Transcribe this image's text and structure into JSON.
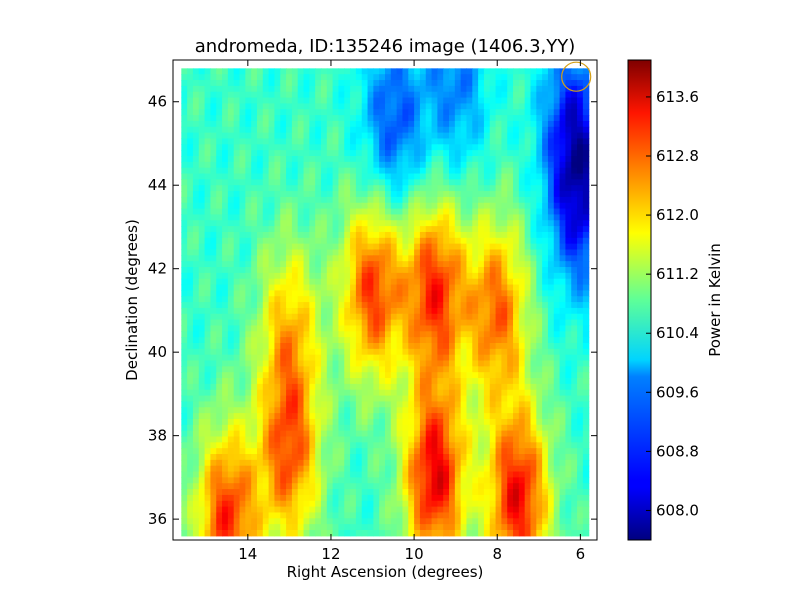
{
  "chart_data": {
    "type": "heatmap",
    "title": "andromeda, ID:135246 image (1406.3,YY)",
    "xlabel": "Right Ascension (degrees)",
    "ylabel": "Declination (degrees)",
    "colorbar_label": "Power in Kelvin",
    "colormap": "jet",
    "xlim": [
      15.8,
      5.6
    ],
    "ylim": [
      35.5,
      47.0
    ],
    "x_ticks": [
      14,
      12,
      10,
      8,
      6
    ],
    "x_tick_labels": [
      "14",
      "12",
      "10",
      "8",
      "6"
    ],
    "y_ticks": [
      36,
      38,
      40,
      42,
      44,
      46
    ],
    "y_tick_labels": [
      "36",
      "38",
      "40",
      "42",
      "44",
      "46"
    ],
    "color_range": [
      607.6,
      614.1
    ],
    "colorbar_ticks": [
      608.0,
      608.8,
      609.6,
      610.4,
      611.2,
      612.0,
      612.8,
      613.6
    ],
    "colorbar_tick_labels": [
      "608.0",
      "608.8",
      "609.6",
      "610.4",
      "611.2",
      "612.0",
      "612.8",
      "613.6"
    ],
    "data_extent": {
      "x": [
        15.6,
        5.8
      ],
      "y": [
        35.6,
        46.8
      ]
    },
    "features": [
      {
        "ra": 13.0,
        "dec": 37.5,
        "value": 612.6
      },
      {
        "ra": 13.0,
        "dec": 40.5,
        "value": 612.0
      },
      {
        "ra": 11.0,
        "dec": 41.5,
        "value": 612.9
      },
      {
        "ra": 9.5,
        "dec": 41.5,
        "value": 613.0
      },
      {
        "ra": 9.5,
        "dec": 37.0,
        "value": 613.4
      },
      {
        "ra": 8.0,
        "dec": 41.0,
        "value": 612.6
      },
      {
        "ra": 7.5,
        "dec": 36.5,
        "value": 613.3
      },
      {
        "ra": 14.5,
        "dec": 36.0,
        "value": 613.0
      },
      {
        "ra": 10.5,
        "dec": 45.5,
        "value": 608.9
      },
      {
        "ra": 6.0,
        "dec": 43.5,
        "value": 608.6
      },
      {
        "ra": 6.2,
        "dec": 45.5,
        "value": 608.8
      },
      {
        "ra": 9.0,
        "dec": 46.5,
        "value": 609.2
      }
    ],
    "background_value": 610.4,
    "beam_marker": {
      "ra": 6.1,
      "dec": 46.6,
      "radius_deg": 0.35,
      "color": "#d4a017"
    }
  }
}
